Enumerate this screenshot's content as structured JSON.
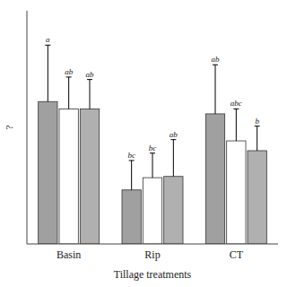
{
  "chart_data": {
    "type": "bar",
    "xlabel": "Tillage treatments",
    "ylabel": "?",
    "categories": [
      "Basin",
      "Rip",
      "CT"
    ],
    "series": [
      {
        "color": "#a0a0a0",
        "values": [
          5.8,
          2.2,
          5.3
        ],
        "errors": [
          2.3,
          1.2,
          2.0
        ],
        "annotations": [
          "a",
          "bc",
          "ab"
        ]
      },
      {
        "color": "#ffffff",
        "values": [
          5.5,
          2.7,
          4.2
        ],
        "errors": [
          1.3,
          1.0,
          1.3
        ],
        "annotations": [
          "ab",
          "bc",
          "abc"
        ]
      },
      {
        "color": "#b0b0b0",
        "values": [
          5.5,
          2.75,
          3.8
        ],
        "errors": [
          1.2,
          1.5,
          1.0
        ],
        "annotations": [
          "ab",
          "ab",
          "b"
        ]
      }
    ],
    "ylim": [
      0,
      9.5
    ],
    "yticks": [],
    "tick_labels": "x",
    "grid": false
  }
}
